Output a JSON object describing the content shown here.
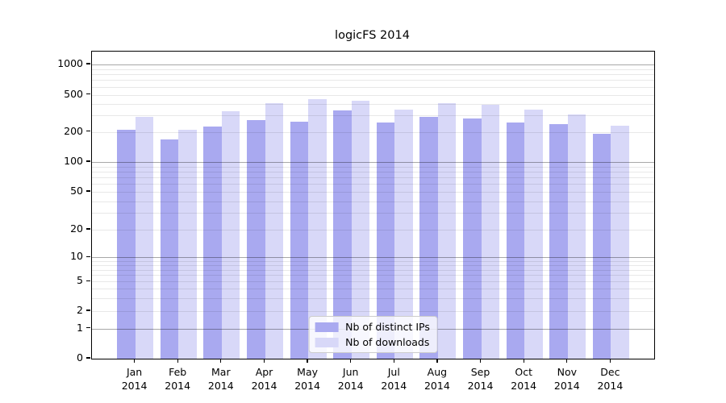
{
  "title": "logicFS 2014",
  "chart_data": {
    "type": "bar",
    "title": "logicFS 2014",
    "categories": [
      "Jan",
      "Feb",
      "Mar",
      "Apr",
      "May",
      "Jun",
      "Jul",
      "Aug",
      "Sep",
      "Oct",
      "Nov",
      "Dec"
    ],
    "category_year": "2014",
    "series": [
      {
        "name": "Nb of distinct IPs",
        "color": "#a9a9f0",
        "values": [
          210,
          168,
          228,
          267,
          260,
          340,
          255,
          290,
          277,
          253,
          245,
          192
        ]
      },
      {
        "name": "Nb of downloads",
        "color": "#d8d8f8",
        "values": [
          290,
          210,
          335,
          410,
          452,
          430,
          345,
          405,
          390,
          345,
          310,
          232
        ]
      }
    ],
    "xlabel": "",
    "ylabel": "",
    "y_axis": {
      "scale": "symlog",
      "tick_labels": [
        "1000",
        "500",
        "200",
        "100",
        "50",
        "20",
        "10",
        "5",
        "2",
        "1",
        "0"
      ],
      "tick_values": [
        1000,
        500,
        200,
        100,
        50,
        20,
        10,
        5,
        2,
        1,
        0
      ],
      "ylim": [
        0,
        1300
      ]
    },
    "legend": {
      "position": "lower center",
      "entries": [
        "Nb of distinct IPs",
        "Nb of downloads"
      ]
    },
    "grid": true,
    "colors": {
      "major_grid": "#aaaaaa",
      "minor_grid": "#e8e8e8",
      "spine": "#000000",
      "background": "#ffffff"
    }
  }
}
